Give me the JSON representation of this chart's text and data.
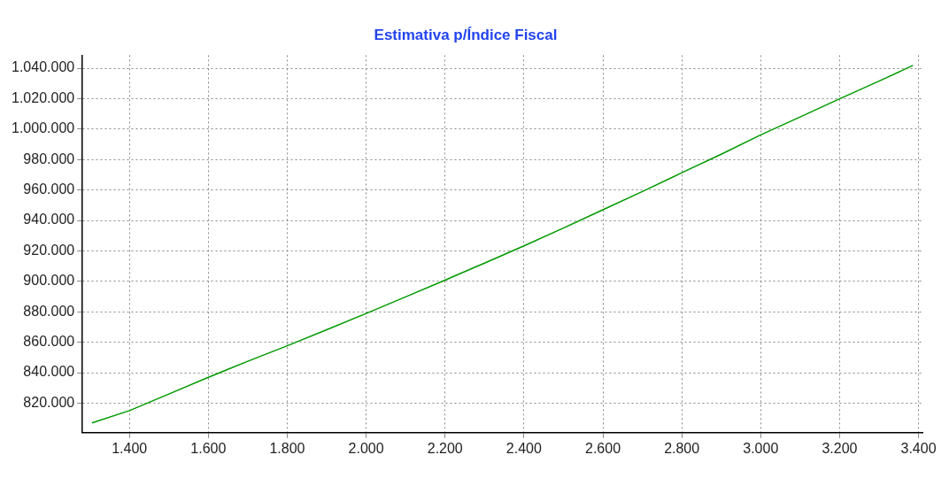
{
  "chart_data": {
    "type": "line",
    "title": "Estimativa p/Índice Fiscal",
    "x": [
      1305,
      1400,
      1500,
      1600,
      1700,
      1800,
      1900,
      2000,
      2100,
      2200,
      2300,
      2400,
      2500,
      2600,
      2700,
      2800,
      2900,
      3000,
      3100,
      3200,
      3300,
      3386
    ],
    "series": [
      {
        "color": "#009900",
        "values": [
          807000,
          815100,
          826000,
          837000,
          847500,
          857700,
          868200,
          878900,
          889800,
          900800,
          912000,
          923300,
          935000,
          947000,
          959000,
          971300,
          983500,
          996200,
          1008000,
          1019900,
          1031500,
          1041800
        ]
      }
    ],
    "xlim": [
      1281,
      3410
    ],
    "xticks": [
      {
        "value": 1400,
        "label": "1.400"
      },
      {
        "value": 1600,
        "label": "1.600"
      },
      {
        "value": 1800,
        "label": "1.800"
      },
      {
        "value": 2000,
        "label": "2.000"
      },
      {
        "value": 2200,
        "label": "2.200"
      },
      {
        "value": 2400,
        "label": "2.400"
      },
      {
        "value": 2600,
        "label": "2.600"
      },
      {
        "value": 2800,
        "label": "2.800"
      },
      {
        "value": 3000,
        "label": "3.000"
      },
      {
        "value": 3200,
        "label": "3.200"
      },
      {
        "value": 3400,
        "label": "3.400"
      }
    ],
    "ylim": [
      800600,
      1048500
    ],
    "yticks": [
      {
        "value": 820000,
        "label": "820.000"
      },
      {
        "value": 840000,
        "label": "840.000"
      },
      {
        "value": 860000,
        "label": "860.000"
      },
      {
        "value": 880000,
        "label": "880.000"
      },
      {
        "value": 900000,
        "label": "900.000"
      },
      {
        "value": 920000,
        "label": "920.000"
      },
      {
        "value": 940000,
        "label": "940.000"
      },
      {
        "value": 960000,
        "label": "960.000"
      },
      {
        "value": 980000,
        "label": "980.000"
      },
      {
        "value": 1000000,
        "label": "1.000.000"
      },
      {
        "value": 1020000,
        "label": "1.020.000"
      },
      {
        "value": 1040000,
        "label": "1.040.000"
      }
    ],
    "grid": true,
    "legend": false,
    "marker": "none",
    "line_style": "solid"
  }
}
